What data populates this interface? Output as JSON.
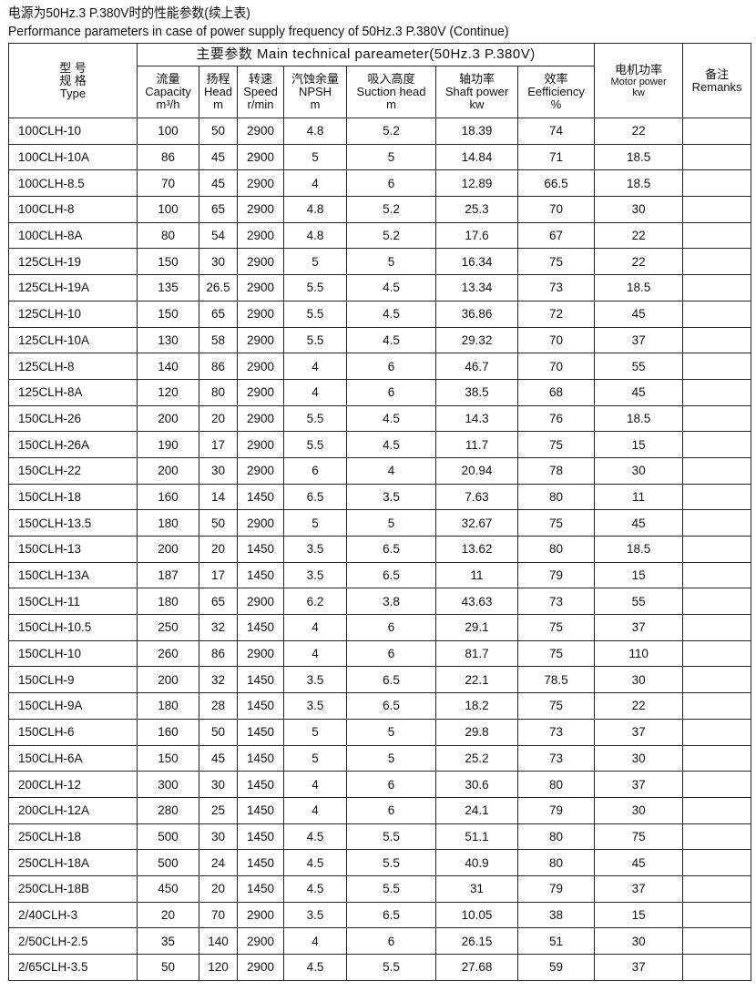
{
  "title_cn": "电源为50Hz.3 P.380V时的性能参数(续上表)",
  "title_en": "Performance parameters in case of power supply frequency of 50Hz.3 P.380V (Continue)",
  "header": {
    "type": {
      "cn1": "型 号",
      "cn2": "规 格",
      "en": "Type"
    },
    "main": "主要参数 Main technical pareameter(50Hz.3 P.380V)",
    "capacity": {
      "cn": "流量",
      "en": "Capacity",
      "unit": "m³/h"
    },
    "head": {
      "cn": "扬程",
      "en": "Head",
      "unit": "m"
    },
    "speed": {
      "cn": "转速",
      "en": "Speed",
      "unit": "r/min"
    },
    "npsh": {
      "cn": "汽蚀余量",
      "en": "NPSH",
      "unit": "m"
    },
    "suction": {
      "cn": "吸入高度",
      "en": "Suction head",
      "unit": "m"
    },
    "shaft": {
      "cn": "轴功率",
      "en": "Shaft power",
      "unit": "kw"
    },
    "eff": {
      "cn": "效率",
      "en": "Eefficiency",
      "unit": "%"
    },
    "motor": {
      "cn": "电机功率",
      "en": "Motor power",
      "unit": "kw"
    },
    "remarks": {
      "cn": "备注",
      "en": "Remanks"
    }
  },
  "rows": [
    [
      "100CLH-10",
      "100",
      "50",
      "2900",
      "4.8",
      "5.2",
      "18.39",
      "74",
      "22",
      ""
    ],
    [
      "100CLH-10A",
      "86",
      "45",
      "2900",
      "5",
      "5",
      "14.84",
      "71",
      "18.5",
      ""
    ],
    [
      "100CLH-8.5",
      "70",
      "45",
      "2900",
      "4",
      "6",
      "12.89",
      "66.5",
      "18.5",
      ""
    ],
    [
      "100CLH-8",
      "100",
      "65",
      "2900",
      "4.8",
      "5.2",
      "25.3",
      "70",
      "30",
      ""
    ],
    [
      "100CLH-8A",
      "80",
      "54",
      "2900",
      "4.8",
      "5.2",
      "17.6",
      "67",
      "22",
      ""
    ],
    [
      "125CLH-19",
      "150",
      "30",
      "2900",
      "5",
      "5",
      "16.34",
      "75",
      "22",
      ""
    ],
    [
      "125CLH-19A",
      "135",
      "26.5",
      "2900",
      "5.5",
      "4.5",
      "13.34",
      "73",
      "18.5",
      ""
    ],
    [
      "125CLH-10",
      "150",
      "65",
      "2900",
      "5.5",
      "4.5",
      "36.86",
      "72",
      "45",
      ""
    ],
    [
      "125CLH-10A",
      "130",
      "58",
      "2900",
      "5.5",
      "4.5",
      "29.32",
      "70",
      "37",
      ""
    ],
    [
      "125CLH-8",
      "140",
      "86",
      "2900",
      "4",
      "6",
      "46.7",
      "70",
      "55",
      ""
    ],
    [
      "125CLH-8A",
      "120",
      "80",
      "2900",
      "4",
      "6",
      "38.5",
      "68",
      "45",
      ""
    ],
    [
      "150CLH-26",
      "200",
      "20",
      "2900",
      "5.5",
      "4.5",
      "14.3",
      "76",
      "18.5",
      ""
    ],
    [
      "150CLH-26A",
      "190",
      "17",
      "2900",
      "5.5",
      "4.5",
      "11.7",
      "75",
      "15",
      ""
    ],
    [
      "150CLH-22",
      "200",
      "30",
      "2900",
      "6",
      "4",
      "20.94",
      "78",
      "30",
      ""
    ],
    [
      "150CLH-18",
      "160",
      "14",
      "1450",
      "6.5",
      "3.5",
      "7.63",
      "80",
      "11",
      ""
    ],
    [
      "150CLH-13.5",
      "180",
      "50",
      "2900",
      "5",
      "5",
      "32.67",
      "75",
      "45",
      ""
    ],
    [
      "150CLH-13",
      "200",
      "20",
      "1450",
      "3.5",
      "6.5",
      "13.62",
      "80",
      "18.5",
      ""
    ],
    [
      "150CLH-13A",
      "187",
      "17",
      "1450",
      "3.5",
      "6.5",
      "11",
      "79",
      "15",
      ""
    ],
    [
      "150CLH-11",
      "180",
      "65",
      "2900",
      "6.2",
      "3.8",
      "43.63",
      "73",
      "55",
      ""
    ],
    [
      "150CLH-10.5",
      "250",
      "32",
      "1450",
      "4",
      "6",
      "29.1",
      "75",
      "37",
      ""
    ],
    [
      "150CLH-10",
      "260",
      "86",
      "2900",
      "4",
      "6",
      "81.7",
      "75",
      "110",
      ""
    ],
    [
      "150CLH-9",
      "200",
      "32",
      "1450",
      "3.5",
      "6.5",
      "22.1",
      "78.5",
      "30",
      ""
    ],
    [
      "150CLH-9A",
      "180",
      "28",
      "1450",
      "3.5",
      "6.5",
      "18.2",
      "75",
      "22",
      ""
    ],
    [
      "150CLH-6",
      "160",
      "50",
      "1450",
      "5",
      "5",
      "29.8",
      "73",
      "37",
      ""
    ],
    [
      "150CLH-6A",
      "150",
      "45",
      "1450",
      "5",
      "5",
      "25.2",
      "73",
      "30",
      ""
    ],
    [
      "200CLH-12",
      "300",
      "30",
      "1450",
      "4",
      "6",
      "30.6",
      "80",
      "37",
      ""
    ],
    [
      "200CLH-12A",
      "280",
      "25",
      "1450",
      "4",
      "6",
      "24.1",
      "79",
      "30",
      ""
    ],
    [
      "250CLH-18",
      "500",
      "30",
      "1450",
      "4.5",
      "5.5",
      "51.1",
      "80",
      "75",
      ""
    ],
    [
      "250CLH-18A",
      "500",
      "24",
      "1450",
      "4.5",
      "5.5",
      "40.9",
      "80",
      "45",
      ""
    ],
    [
      "250CLH-18B",
      "450",
      "20",
      "1450",
      "4.5",
      "5.5",
      "31",
      "79",
      "37",
      ""
    ],
    [
      "2/40CLH-3",
      "20",
      "70",
      "2900",
      "3.5",
      "6.5",
      "10.05",
      "38",
      "15",
      ""
    ],
    [
      "2/50CLH-2.5",
      "35",
      "140",
      "2900",
      "4",
      "6",
      "26.15",
      "51",
      "30",
      ""
    ],
    [
      "2/65CLH-3.5",
      "50",
      "120",
      "2900",
      "4.5",
      "5.5",
      "27.68",
      "59",
      "37",
      ""
    ]
  ]
}
